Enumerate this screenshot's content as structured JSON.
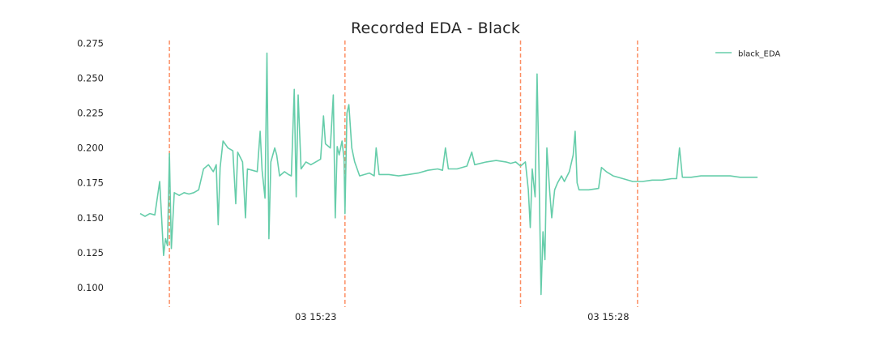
{
  "chart_data": {
    "type": "line",
    "title": "Recorded EDA - Black",
    "xlabel": "",
    "ylabel": "",
    "y_ticks": [
      0.1,
      0.125,
      0.15,
      0.175,
      0.2,
      0.225,
      0.25,
      0.275
    ],
    "y_tick_labels": [
      "0.100",
      "0.125",
      "0.150",
      "0.175",
      "0.200",
      "0.225",
      "0.250",
      "0.275"
    ],
    "ylim": [
      0.086,
      0.277
    ],
    "xlim": [
      "15:20:00",
      "15:30:33"
    ],
    "x_ticks": [
      {
        "label": "03 15:23",
        "time": "15:23:00"
      },
      {
        "label": "03 15:28",
        "time": "15:28:00"
      }
    ],
    "grid": false,
    "legend_position": "top-right",
    "series": [
      {
        "name": "black_EDA",
        "color": "#66cdaa",
        "points": [
          [
            "15:20:00",
            0.153
          ],
          [
            "15:20:05",
            0.151
          ],
          [
            "15:20:10",
            0.153
          ],
          [
            "15:20:15",
            0.152
          ],
          [
            "15:20:20",
            0.176
          ],
          [
            "15:20:22",
            0.15
          ],
          [
            "15:20:24",
            0.123
          ],
          [
            "15:20:26",
            0.135
          ],
          [
            "15:20:28",
            0.13
          ],
          [
            "15:20:30",
            0.196
          ],
          [
            "15:20:32",
            0.128
          ],
          [
            "15:20:35",
            0.168
          ],
          [
            "15:20:40",
            0.166
          ],
          [
            "15:20:45",
            0.168
          ],
          [
            "15:20:50",
            0.167
          ],
          [
            "15:20:55",
            0.168
          ],
          [
            "15:21:00",
            0.17
          ],
          [
            "15:21:05",
            0.185
          ],
          [
            "15:21:10",
            0.188
          ],
          [
            "15:21:15",
            0.183
          ],
          [
            "15:21:18",
            0.188
          ],
          [
            "15:21:20",
            0.145
          ],
          [
            "15:21:22",
            0.186
          ],
          [
            "15:21:25",
            0.205
          ],
          [
            "15:21:30",
            0.2
          ],
          [
            "15:21:35",
            0.198
          ],
          [
            "15:21:38",
            0.16
          ],
          [
            "15:21:40",
            0.197
          ],
          [
            "15:21:45",
            0.19
          ],
          [
            "15:21:48",
            0.15
          ],
          [
            "15:21:50",
            0.185
          ],
          [
            "15:21:55",
            0.184
          ],
          [
            "15:22:00",
            0.183
          ],
          [
            "15:22:03",
            0.212
          ],
          [
            "15:22:05",
            0.184
          ],
          [
            "15:22:08",
            0.164
          ],
          [
            "15:22:10",
            0.268
          ],
          [
            "15:22:12",
            0.135
          ],
          [
            "15:22:14",
            0.19
          ],
          [
            "15:22:18",
            0.2
          ],
          [
            "15:22:20",
            0.195
          ],
          [
            "15:22:23",
            0.18
          ],
          [
            "15:22:28",
            0.183
          ],
          [
            "15:22:32",
            0.181
          ],
          [
            "15:22:35",
            0.18
          ],
          [
            "15:22:38",
            0.242
          ],
          [
            "15:22:40",
            0.165
          ],
          [
            "15:22:42",
            0.238
          ],
          [
            "15:22:45",
            0.185
          ],
          [
            "15:22:50",
            0.19
          ],
          [
            "15:22:55",
            0.188
          ],
          [
            "15:23:00",
            0.19
          ],
          [
            "15:23:05",
            0.192
          ],
          [
            "15:23:08",
            0.223
          ],
          [
            "15:23:10",
            0.203
          ],
          [
            "15:23:15",
            0.2
          ],
          [
            "15:23:18",
            0.238
          ],
          [
            "15:23:20",
            0.15
          ],
          [
            "15:23:22",
            0.201
          ],
          [
            "15:23:24",
            0.195
          ],
          [
            "15:23:27",
            0.205
          ],
          [
            "15:23:29",
            0.192
          ],
          [
            "15:23:30",
            0.153
          ],
          [
            "15:23:32",
            0.225
          ],
          [
            "15:23:34",
            0.231
          ],
          [
            "15:23:37",
            0.2
          ],
          [
            "15:23:40",
            0.19
          ],
          [
            "15:23:45",
            0.18
          ],
          [
            "15:23:50",
            0.181
          ],
          [
            "15:23:55",
            0.182
          ],
          [
            "15:24:00",
            0.18
          ],
          [
            "15:24:02",
            0.2
          ],
          [
            "15:24:05",
            0.181
          ],
          [
            "15:24:15",
            0.181
          ],
          [
            "15:24:25",
            0.18
          ],
          [
            "15:24:35",
            0.181
          ],
          [
            "15:24:45",
            0.182
          ],
          [
            "15:24:55",
            0.184
          ],
          [
            "15:25:05",
            0.185
          ],
          [
            "15:25:10",
            0.184
          ],
          [
            "15:25:13",
            0.2
          ],
          [
            "15:25:16",
            0.185
          ],
          [
            "15:25:25",
            0.185
          ],
          [
            "15:25:35",
            0.187
          ],
          [
            "15:25:40",
            0.197
          ],
          [
            "15:25:43",
            0.188
          ],
          [
            "15:25:55",
            0.19
          ],
          [
            "15:26:05",
            0.191
          ],
          [
            "15:26:15",
            0.19
          ],
          [
            "15:26:20",
            0.189
          ],
          [
            "15:26:25",
            0.19
          ],
          [
            "15:26:30",
            0.187
          ],
          [
            "15:26:35",
            0.19
          ],
          [
            "15:26:38",
            0.17
          ],
          [
            "15:26:40",
            0.143
          ],
          [
            "15:26:42",
            0.185
          ],
          [
            "15:26:45",
            0.165
          ],
          [
            "15:26:47",
            0.253
          ],
          [
            "15:26:49",
            0.18
          ],
          [
            "15:26:51",
            0.095
          ],
          [
            "15:26:53",
            0.14
          ],
          [
            "15:26:55",
            0.12
          ],
          [
            "15:26:57",
            0.2
          ],
          [
            "15:27:00",
            0.168
          ],
          [
            "15:27:02",
            0.15
          ],
          [
            "15:27:05",
            0.17
          ],
          [
            "15:27:08",
            0.175
          ],
          [
            "15:27:12",
            0.18
          ],
          [
            "15:27:15",
            0.176
          ],
          [
            "15:27:20",
            0.183
          ],
          [
            "15:27:24",
            0.195
          ],
          [
            "15:27:26",
            0.212
          ],
          [
            "15:27:28",
            0.175
          ],
          [
            "15:27:30",
            0.17
          ],
          [
            "15:27:40",
            0.17
          ],
          [
            "15:27:50",
            0.171
          ],
          [
            "15:27:53",
            0.186
          ],
          [
            "15:27:58",
            0.183
          ],
          [
            "15:28:05",
            0.18
          ],
          [
            "15:28:15",
            0.178
          ],
          [
            "15:28:25",
            0.176
          ],
          [
            "15:28:35",
            0.176
          ],
          [
            "15:28:45",
            0.177
          ],
          [
            "15:28:55",
            0.177
          ],
          [
            "15:29:05",
            0.178
          ],
          [
            "15:29:10",
            0.178
          ],
          [
            "15:29:13",
            0.2
          ],
          [
            "15:29:16",
            0.179
          ],
          [
            "15:29:25",
            0.179
          ],
          [
            "15:29:35",
            0.18
          ],
          [
            "15:29:45",
            0.18
          ],
          [
            "15:29:55",
            0.18
          ],
          [
            "15:30:05",
            0.18
          ],
          [
            "15:30:15",
            0.179
          ],
          [
            "15:30:25",
            0.179
          ],
          [
            "15:30:33",
            0.179
          ]
        ]
      }
    ],
    "markers": {
      "type": "vertical-dashed-line",
      "color": "#fc8d62",
      "times": [
        "15:20:30",
        "15:23:30",
        "15:26:30",
        "15:28:30"
      ]
    }
  }
}
